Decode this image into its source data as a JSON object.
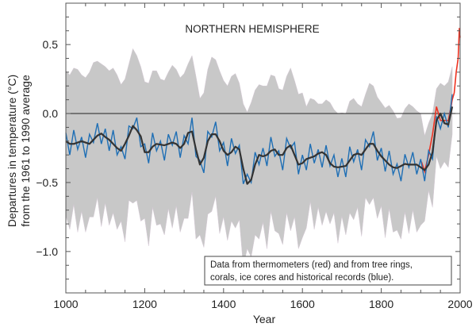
{
  "chart_data": {
    "type": "line",
    "title": "NORTHERN HEMISPHERE",
    "xlabel": "Year",
    "ylabel": [
      "Departures in temperature (°C)",
      "from the 1961 to 1990 average"
    ],
    "xlim": [
      1000,
      2000
    ],
    "ylim": [
      -1.3,
      0.8
    ],
    "x_ticks": [
      1000,
      1200,
      1400,
      1600,
      1800,
      2000
    ],
    "x_tick_labels": [
      "1000",
      "1200",
      "1400",
      "1600",
      "1800",
      "2000"
    ],
    "y_ticks": [
      0.5,
      0.0,
      -0.5,
      -1.0
    ],
    "y_tick_labels": [
      "0.5",
      "0.0",
      "−0.5",
      "−1.0"
    ],
    "grid": false,
    "reference_line": 0.0,
    "annotation": [
      "Data from thermometers (red) and from tree rings,",
      "corals, ice cores and historical records (blue)."
    ],
    "annotation_position": "bottom-right",
    "colors": {
      "proxy": "#1f6fb5",
      "instrumental": "#ee3322",
      "smoothed": "#333333",
      "uncertainty": "#c8c8c8",
      "zero_line": "#222222"
    },
    "proxy_reconstruction": {
      "start": 1000,
      "step": 10,
      "values": [
        -0.14,
        -0.3,
        -0.12,
        -0.26,
        -0.17,
        -0.32,
        -0.15,
        -0.21,
        -0.07,
        -0.22,
        -0.11,
        -0.27,
        -0.12,
        -0.3,
        -0.24,
        -0.33,
        -0.09,
        -0.11,
        -0.03,
        -0.24,
        -0.22,
        -0.36,
        -0.14,
        -0.27,
        -0.2,
        -0.34,
        -0.15,
        -0.23,
        -0.13,
        -0.32,
        -0.16,
        -0.22,
        -0.03,
        -0.31,
        -0.34,
        -0.43,
        -0.13,
        -0.17,
        -0.06,
        -0.27,
        -0.21,
        -0.38,
        -0.18,
        -0.29,
        -0.23,
        -0.51,
        -0.44,
        -0.5,
        -0.28,
        -0.37,
        -0.25,
        -0.38,
        -0.17,
        -0.31,
        -0.27,
        -0.41,
        -0.18,
        -0.25,
        -0.21,
        -0.44,
        -0.3,
        -0.41,
        -0.22,
        -0.36,
        -0.26,
        -0.39,
        -0.23,
        -0.38,
        -0.3,
        -0.46,
        -0.325,
        -0.46,
        -0.24,
        -0.35,
        -0.26,
        -0.41,
        -0.19,
        -0.24,
        -0.13,
        -0.34,
        -0.25,
        -0.42,
        -0.27,
        -0.44,
        -0.365,
        -0.49,
        -0.295,
        -0.39,
        -0.28,
        -0.44,
        -0.33,
        -0.49,
        -0.27,
        -0.33,
        -0.02,
        -0.11,
        0.0,
        -0.1,
        0.14
      ]
    },
    "smoothed": {
      "start": 1000,
      "step": 10,
      "values": [
        -0.2,
        -0.22,
        -0.22,
        -0.21,
        -0.2,
        -0.21,
        -0.22,
        -0.19,
        -0.16,
        -0.145,
        -0.17,
        -0.19,
        -0.22,
        -0.25,
        -0.27,
        -0.22,
        -0.16,
        -0.09,
        -0.12,
        -0.165,
        -0.28,
        -0.28,
        -0.24,
        -0.22,
        -0.225,
        -0.23,
        -0.22,
        -0.21,
        -0.22,
        -0.25,
        -0.22,
        -0.14,
        -0.13,
        -0.26,
        -0.37,
        -0.32,
        -0.2,
        -0.15,
        -0.15,
        -0.2,
        -0.27,
        -0.3,
        -0.28,
        -0.24,
        -0.26,
        -0.4,
        -0.51,
        -0.48,
        -0.37,
        -0.3,
        -0.31,
        -0.3,
        -0.27,
        -0.26,
        -0.3,
        -0.3,
        -0.25,
        -0.23,
        -0.3,
        -0.37,
        -0.36,
        -0.33,
        -0.32,
        -0.31,
        -0.29,
        -0.28,
        -0.3,
        -0.36,
        -0.385,
        -0.39,
        -0.385,
        -0.38,
        -0.34,
        -0.3,
        -0.29,
        -0.3,
        -0.26,
        -0.22,
        -0.22,
        -0.27,
        -0.31,
        -0.34,
        -0.37,
        -0.39,
        -0.395,
        -0.38,
        -0.365,
        -0.37,
        -0.37,
        -0.37,
        -0.39,
        -0.41,
        -0.37,
        -0.28,
        -0.05,
        0.0,
        -0.07,
        -0.08,
        0.05
      ]
    },
    "uncertainty_half_width": [
      {
        "from": 1000,
        "to": 1600,
        "value": 0.5
      },
      {
        "from": 1600,
        "to": 1900,
        "value": 0.38
      },
      {
        "from": 1900,
        "to": 1980,
        "value": 0.25
      }
    ],
    "instrumental": {
      "x": [
        1902,
        1910,
        1920,
        1930,
        1940,
        1950,
        1960,
        1970,
        1980,
        1985,
        1990,
        1995,
        1998,
        2000
      ],
      "values": [
        -0.35,
        -0.42,
        -0.3,
        -0.15,
        0.05,
        -0.05,
        -0.05,
        -0.05,
        0.1,
        0.15,
        0.3,
        0.4,
        0.62,
        0.55
      ]
    }
  }
}
